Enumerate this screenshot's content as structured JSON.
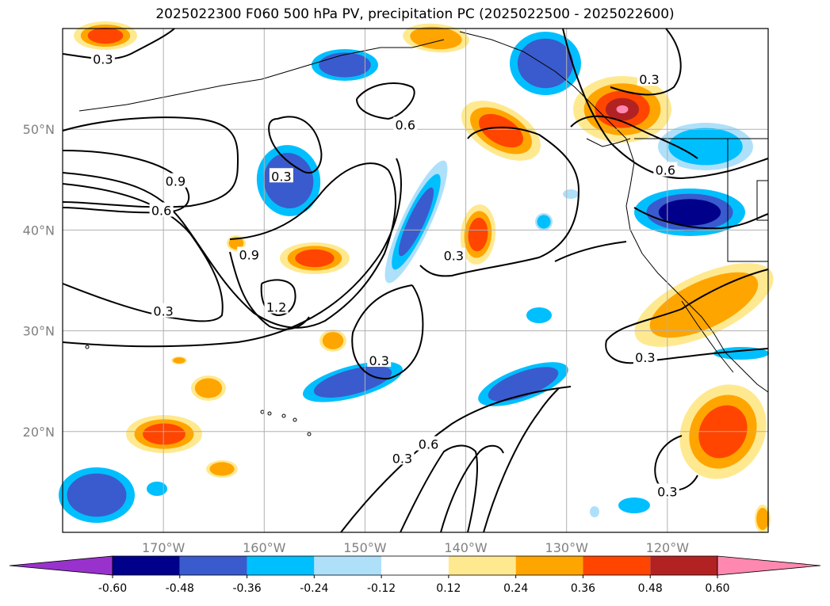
{
  "title": "2025022300 F060 500 hPa PV, precipitation PC (2025022500 - 2025022600)",
  "map": {
    "lon_range": [
      -180,
      -110
    ],
    "lat_range": [
      10,
      60
    ],
    "lon_ticks": [
      {
        "value": -170,
        "label": "170°W"
      },
      {
        "value": -160,
        "label": "160°W"
      },
      {
        "value": -150,
        "label": "150°W"
      },
      {
        "value": -140,
        "label": "140°W"
      },
      {
        "value": -130,
        "label": "130°W"
      },
      {
        "value": -120,
        "label": "120°W"
      }
    ],
    "lat_ticks": [
      {
        "value": 20,
        "label": "20°N"
      },
      {
        "value": 30,
        "label": "30°N"
      },
      {
        "value": 40,
        "label": "40°N"
      },
      {
        "value": 50,
        "label": "50°N"
      }
    ],
    "grid": true,
    "contour_labels": [
      {
        "text": "0.3",
        "lon": -176,
        "lat": 56.8
      },
      {
        "text": "0.6",
        "lon": -146,
        "lat": 50.3
      },
      {
        "text": "0.3",
        "lon": -158.3,
        "lat": 45.2
      },
      {
        "text": "0.9",
        "lon": -168.8,
        "lat": 44.7
      },
      {
        "text": "0.6",
        "lon": -170.2,
        "lat": 41.8
      },
      {
        "text": "0.9",
        "lon": -161.5,
        "lat": 37.4
      },
      {
        "text": "0.3",
        "lon": -141.2,
        "lat": 37.3
      },
      {
        "text": "1.2",
        "lon": -158.8,
        "lat": 32.2
      },
      {
        "text": "0.3",
        "lon": -170,
        "lat": 31.8
      },
      {
        "text": "0.3",
        "lon": -148.6,
        "lat": 26.9
      },
      {
        "text": "0.3",
        "lon": -122.2,
        "lat": 27.2
      },
      {
        "text": "0.3",
        "lon": -121.8,
        "lat": 54.8
      },
      {
        "text": "0.6",
        "lon": -120.2,
        "lat": 45.8
      },
      {
        "text": "0.3",
        "lon": -146.3,
        "lat": 17.2
      },
      {
        "text": "0.6",
        "lon": -143.7,
        "lat": 18.6
      },
      {
        "text": "0.3",
        "lon": -120,
        "lat": 13.9
      }
    ]
  },
  "colorbar": {
    "levels": [
      "-0.60",
      "-0.48",
      "-0.36",
      "-0.24",
      "-0.12",
      "0.12",
      "0.24",
      "0.36",
      "0.48",
      "0.60"
    ],
    "colors": [
      "#9932CC",
      "#00008B",
      "#3A5BCD",
      "#00BFFF",
      "#AEE0FA",
      "#FFFFFF",
      "#FFE990",
      "#FFA500",
      "#FF4500",
      "#B22222",
      "#FF88B0"
    ]
  }
}
